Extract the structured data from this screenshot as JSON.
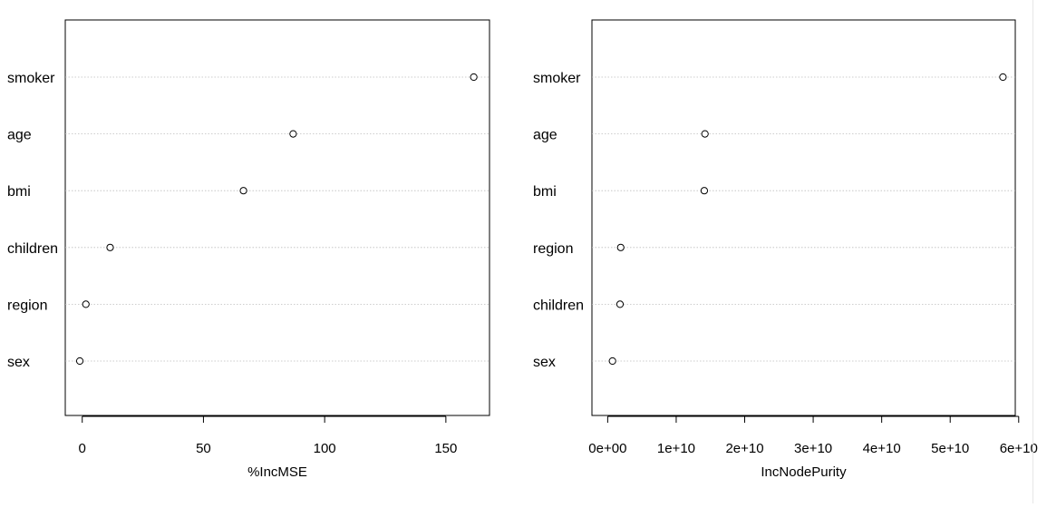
{
  "chart_data": [
    {
      "type": "scatter",
      "variant": "dotchart",
      "xlabel": "%IncMSE",
      "categories": [
        "smoker",
        "age",
        "bmi",
        "children",
        "region",
        "sex"
      ],
      "values": [
        161.5,
        87.0,
        66.5,
        11.5,
        1.5,
        -1.0
      ],
      "xlim": [
        -7,
        168
      ],
      "xticks": [
        0,
        50,
        100,
        150
      ],
      "xtick_labels": [
        "0",
        "50",
        "100",
        "150"
      ],
      "grid": "dotted-horizontal"
    },
    {
      "type": "scatter",
      "variant": "dotchart",
      "xlabel": "IncNodePurity",
      "categories": [
        "smoker",
        "age",
        "bmi",
        "region",
        "children",
        "sex"
      ],
      "values": [
        57700000000,
        14200000000,
        14100000000,
        1900000000,
        1800000000,
        700000000
      ],
      "xlim": [
        -2300000000,
        59500000000
      ],
      "xticks": [
        0,
        10000000000,
        20000000000,
        30000000000,
        40000000000,
        50000000000,
        60000000000
      ],
      "xtick_labels": [
        "0e+00",
        "1e+10",
        "2e+10",
        "3e+10",
        "4e+10",
        "5e+10",
        "6e+10"
      ],
      "grid": "dotted-horizontal"
    }
  ]
}
